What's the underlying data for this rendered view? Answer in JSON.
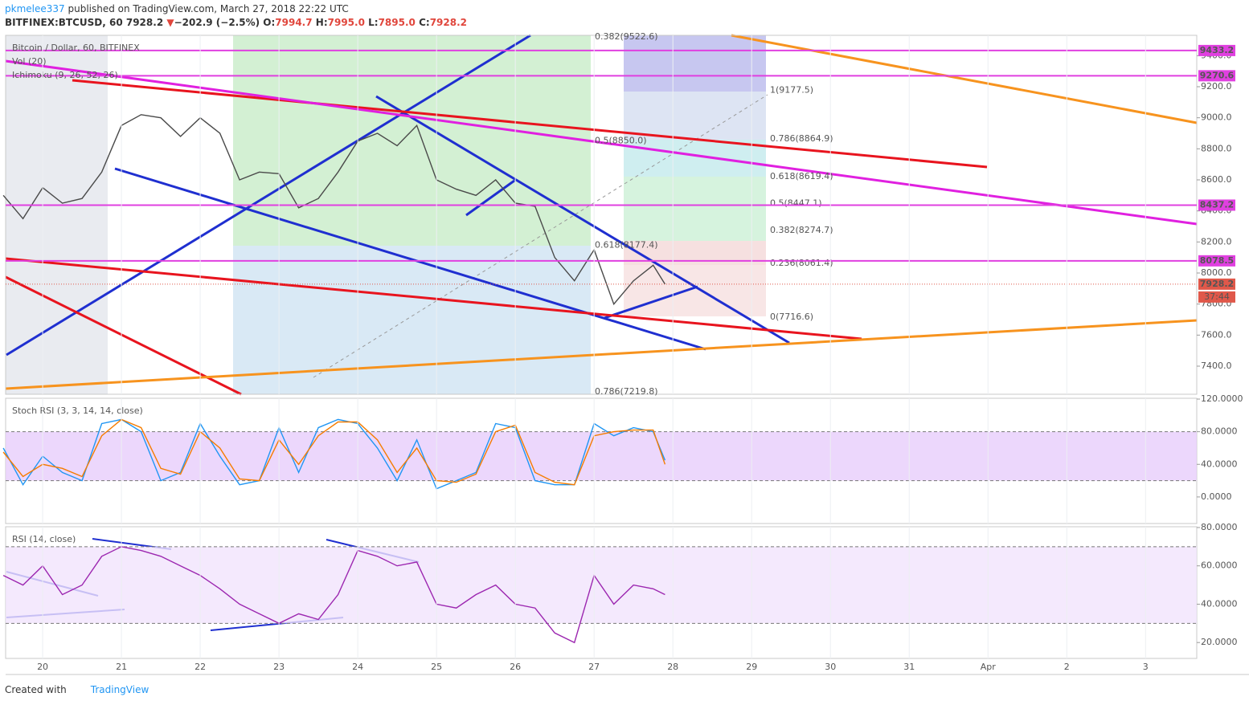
{
  "header": {
    "user": "pkmelee337",
    "published": "published on TradingView.com, March 27, 2018 22:22 UTC",
    "symbol": "BITFINEX:BTCUSD, 60",
    "last": "7928.2",
    "arrow": "▼",
    "change": "−202.9 (−2.5%)",
    "o_label": "O:",
    "open": "7994.7",
    "h_label": "H:",
    "high": "7995.0",
    "l_label": "L:",
    "low": "7895.0",
    "c_label": "C:",
    "close": "7928.2"
  },
  "chart_data": [
    {
      "type": "line",
      "legend": [
        "Bitcoin / Dollar, 60, BITFINEX",
        "Vol (20)",
        "Ichimoku (9, 26, 52, 26)"
      ],
      "x": [
        -0.5,
        -0.25,
        0,
        0.25,
        0.5,
        0.75,
        1,
        1.25,
        1.5,
        1.75,
        2,
        2.25,
        2.5,
        2.75,
        3,
        3.25,
        3.5,
        3.75,
        4,
        4.25,
        4.5,
        4.75,
        5,
        5.25,
        5.5,
        5.75,
        6,
        6.25,
        6.5,
        6.75,
        7,
        7.25,
        7.5,
        7.75,
        7.9
      ],
      "series": [
        {
          "name": "Bitcoin / Dollar, 60, BITFINEX",
          "color": "#4a4a4a",
          "values": [
            8500,
            8350,
            8550,
            8450,
            8480,
            8650,
            8950,
            9020,
            9000,
            8880,
            9000,
            8900,
            8600,
            8650,
            8640,
            8420,
            8480,
            8650,
            8850,
            8900,
            8820,
            8950,
            8600,
            8540,
            8500,
            8600,
            8450,
            8430,
            8100,
            7950,
            8150,
            7800,
            7950,
            8050,
            7928.2
          ]
        }
      ],
      "xlim": [
        -0.47,
        14.65
      ],
      "ylim": [
        7219,
        9531
      ],
      "yticks": [
        {
          "value": 9400,
          "label": "9400.0"
        },
        {
          "value": 9200,
          "label": "9200.0"
        },
        {
          "value": 9000,
          "label": "9000.0"
        },
        {
          "value": 8800,
          "label": "8800.0"
        },
        {
          "value": 8600,
          "label": "8600.0"
        },
        {
          "value": 8400,
          "label": "8400.0"
        },
        {
          "value": 8200,
          "label": "8200.0"
        },
        {
          "value": 8000,
          "label": "8000.0"
        },
        {
          "value": 7800,
          "label": "7800.0"
        },
        {
          "value": 7600,
          "label": "7600.0"
        },
        {
          "value": 7400,
          "label": "7400.0"
        }
      ],
      "price_lines": [
        {
          "value": 9433.2,
          "color": "#e040e0"
        },
        {
          "value": 9270.6,
          "color": "#e040e0"
        },
        {
          "value": 8437.2,
          "color": "#e040e0"
        },
        {
          "value": 8078.5,
          "color": "#e040e0"
        }
      ],
      "last_price": {
        "value": 7928.2,
        "color": "#e0584a",
        "countdown": "37:44"
      },
      "fib_levels": [
        {
          "label": "1(9177.5)",
          "value": 9177.5,
          "color": "#888888"
        },
        {
          "label": "0.786(8864.9)",
          "value": 8864.9,
          "color": "#3a8fc0"
        },
        {
          "label": "0.618(8619.4)",
          "value": 8619.4,
          "color": "#3ab07a"
        },
        {
          "label": "0.5(8447.1)",
          "value": 8447.1,
          "color": "#4caf50"
        },
        {
          "label": "0.382(8274.7)",
          "value": 8274.7,
          "color": "#9cb830"
        },
        {
          "label": "0.236(8061.4)",
          "value": 8061.4,
          "color": "#e05a6a"
        },
        {
          "label": "0(7716.6)",
          "value": 7716.6,
          "color": "#888888"
        }
      ],
      "fib_levels_2": [
        {
          "label": "0.382(9522.6)",
          "value": 9522.6,
          "color": "#9cb830"
        },
        {
          "label": "0.5(8850.0)",
          "value": 8850.0,
          "color": "#4caf50"
        },
        {
          "label": "0.618(8177.4)",
          "value": 8177.4,
          "color": "#3ab07a"
        },
        {
          "label": "0.786(7219.8)",
          "value": 7219.8,
          "color": "#3a8fc0"
        }
      ]
    },
    {
      "type": "line",
      "legend": [
        "Stoch RSI (3, 3, 14, 14, close)"
      ],
      "x": [
        -0.5,
        -0.25,
        0,
        0.25,
        0.5,
        0.75,
        1,
        1.25,
        1.5,
        1.75,
        2,
        2.25,
        2.5,
        2.75,
        3,
        3.25,
        3.5,
        3.75,
        4,
        4.25,
        4.5,
        4.75,
        5,
        5.25,
        5.5,
        5.75,
        6,
        6.25,
        6.5,
        6.75,
        7,
        7.25,
        7.5,
        7.75,
        7.9
      ],
      "series": [
        {
          "color": "#2196f3",
          "values": [
            60,
            15,
            50,
            30,
            20,
            90,
            95,
            80,
            20,
            30,
            90,
            50,
            15,
            20,
            85,
            30,
            85,
            95,
            90,
            60,
            20,
            70,
            10,
            20,
            30,
            90,
            85,
            20,
            15,
            15,
            90,
            75,
            85,
            80,
            45
          ]
        },
        {
          "color": "#f57c00",
          "values": [
            55,
            25,
            40,
            35,
            25,
            75,
            95,
            85,
            35,
            28,
            80,
            60,
            22,
            20,
            70,
            40,
            75,
            92,
            92,
            70,
            30,
            60,
            20,
            18,
            28,
            80,
            88,
            30,
            18,
            15,
            75,
            80,
            82,
            82,
            40
          ]
        }
      ],
      "xlim": [
        -0.47,
        14.65
      ],
      "ylim": [
        -32.6,
        121
      ],
      "bands": [
        20,
        80
      ],
      "band_color": "#e7cdfb",
      "yticks": [
        {
          "value": 120,
          "label": "120.0000"
        },
        {
          "value": 80,
          "label": "80.0000"
        },
        {
          "value": 40,
          "label": "40.0000"
        },
        {
          "value": 0,
          "label": "0.0000"
        }
      ]
    },
    {
      "type": "line",
      "legend": [
        "RSI (14, close)"
      ],
      "x": [
        -0.5,
        -0.25,
        0,
        0.25,
        0.5,
        0.75,
        1,
        1.25,
        1.5,
        1.75,
        2,
        2.25,
        2.5,
        2.75,
        3,
        3.25,
        3.5,
        3.75,
        4,
        4.25,
        4.5,
        4.75,
        5,
        5.25,
        5.5,
        5.75,
        6,
        6.25,
        6.5,
        6.75,
        7,
        7.25,
        7.5,
        7.75,
        7.9
      ],
      "series": [
        {
          "color": "#9c27b0",
          "values": [
            55,
            50,
            60,
            45,
            50,
            65,
            70,
            68,
            65,
            60,
            55,
            48,
            40,
            35,
            30,
            35,
            32,
            45,
            68,
            65,
            60,
            62,
            40,
            38,
            45,
            50,
            40,
            38,
            25,
            20,
            55,
            40,
            50,
            48,
            45
          ]
        }
      ],
      "xlim": [
        -0.47,
        14.65
      ],
      "ylim": [
        11.7,
        80.4
      ],
      "bands": [
        30,
        70
      ],
      "band_color": "#f1e3fc",
      "yticks": [
        {
          "value": 80,
          "label": "80.0000"
        },
        {
          "value": 60,
          "label": "60.0000"
        },
        {
          "value": 40,
          "label": "40.0000"
        },
        {
          "value": 20,
          "label": "20.0000"
        }
      ],
      "xticks": [
        {
          "value": 0,
          "label": "20"
        },
        {
          "value": 1,
          "label": "21"
        },
        {
          "value": 2,
          "label": "22"
        },
        {
          "value": 3,
          "label": "23"
        },
        {
          "value": 4,
          "label": "24"
        },
        {
          "value": 5,
          "label": "25"
        },
        {
          "value": 6,
          "label": "26"
        },
        {
          "value": 7,
          "label": "27"
        },
        {
          "value": 8,
          "label": "28"
        },
        {
          "value": 9,
          "label": "29"
        },
        {
          "value": 10,
          "label": "30"
        },
        {
          "value": 11,
          "label": "31"
        },
        {
          "value": 12,
          "label": "Apr"
        },
        {
          "value": 13,
          "label": "2"
        },
        {
          "value": 14,
          "label": "3"
        }
      ]
    }
  ],
  "footer": {
    "created": "Created with",
    "brand": "TradingView"
  }
}
